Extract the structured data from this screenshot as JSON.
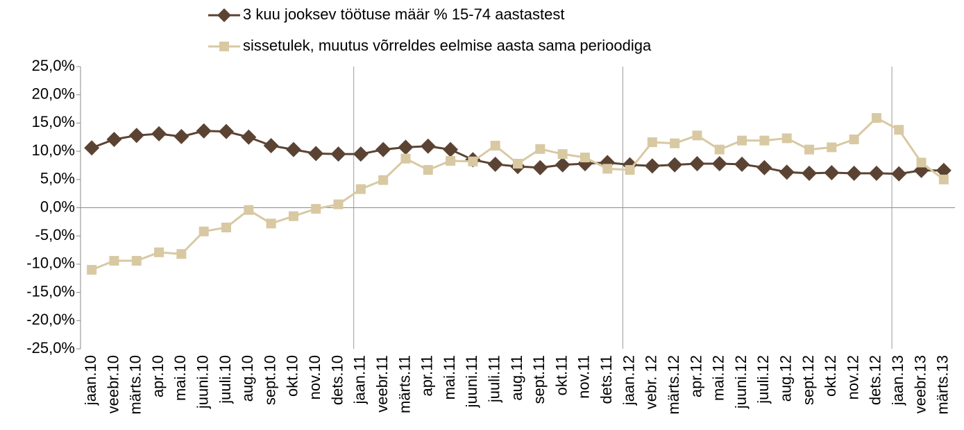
{
  "chart_data": {
    "type": "line",
    "categories": [
      "jaan.10",
      "veebr.10",
      "märts.10",
      "apr.10",
      "mai.10",
      "juuni.10",
      "juuli.10",
      "aug.10",
      "sept.10",
      "okt.10",
      "nov.10",
      "dets.10",
      "jaan.11",
      "veebr.11",
      "märts.11",
      "apr.11",
      "mai.11",
      "juuni.11",
      "juuli.11",
      "aug.11",
      "sept.11",
      "okt.11",
      "nov.11",
      "dets.11",
      "jaan.12",
      "vebr. 12",
      "märts.12",
      "apr.12",
      "mai.12",
      "juuni.12",
      "juuli.12",
      "aug.12",
      "sept.12",
      "okt.12",
      "nov.12",
      "dets.12",
      "jaan.13",
      "veebr.13",
      "märts.13"
    ],
    "series": [
      {
        "name": "3 kuu jooksev töötuse määr % 15-74 aastastest",
        "color": "#5b4333",
        "marker": "diamond",
        "values": [
          10.6,
          12.1,
          12.8,
          13.1,
          12.6,
          13.6,
          13.5,
          12.5,
          11.0,
          10.3,
          9.6,
          9.5,
          9.5,
          10.3,
          10.7,
          10.9,
          10.3,
          8.5,
          7.7,
          7.3,
          7.1,
          7.6,
          7.8,
          8.0,
          7.6,
          7.4,
          7.6,
          7.8,
          7.8,
          7.7,
          7.1,
          6.3,
          6.1,
          6.2,
          6.1,
          6.1,
          6.0,
          6.6,
          6.6
        ]
      },
      {
        "name": "sissetulek, muutus võrreldes eelmise aasta sama perioodiga",
        "color": "#d8c9a3",
        "marker": "square",
        "values": [
          -11.0,
          -9.4,
          -9.4,
          -7.9,
          -8.2,
          -4.2,
          -3.5,
          -0.4,
          -2.8,
          -1.5,
          -0.2,
          0.6,
          3.3,
          4.9,
          8.7,
          6.7,
          8.3,
          8.2,
          11.0,
          7.8,
          10.4,
          9.5,
          8.9,
          6.9,
          6.7,
          11.6,
          11.4,
          12.8,
          10.3,
          11.9,
          11.9,
          12.3,
          10.3,
          10.7,
          12.1,
          15.9,
          13.8,
          8.0,
          5.0
        ]
      }
    ],
    "ylim": [
      -25,
      25
    ],
    "yticks": [
      {
        "value": -25,
        "label": "-25,0%"
      },
      {
        "value": -20,
        "label": "-20,0%"
      },
      {
        "value": -15,
        "label": "-15,0%"
      },
      {
        "value": -10,
        "label": "-10,0%"
      },
      {
        "value": -5,
        "label": "-5,0%"
      },
      {
        "value": 0,
        "label": "0,0%"
      },
      {
        "value": 5,
        "label": "5,0%"
      },
      {
        "value": 10,
        "label": "10,0%"
      },
      {
        "value": 15,
        "label": "15,0%"
      },
      {
        "value": 20,
        "label": "20,0%"
      },
      {
        "value": 25,
        "label": "25,0%"
      }
    ],
    "grid": false
  }
}
